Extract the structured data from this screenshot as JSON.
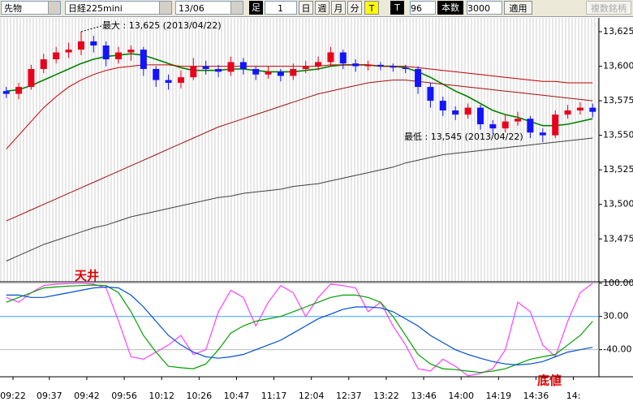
{
  "toolbar": {
    "market": "先物",
    "symbol": "日経225mini",
    "contract": "13/06",
    "bar_label": "足",
    "bar_value": 1,
    "periods": [
      "日",
      "週",
      "月",
      "分"
    ],
    "t_button": "T",
    "t_toggle": "T",
    "count": 96,
    "count_label": "本数",
    "bars": 3000,
    "apply": "適用",
    "multi": "複数銘柄"
  },
  "chart_data": [
    {
      "type": "candlestick",
      "categories": [
        "09:22",
        null,
        null,
        "09:37",
        null,
        null,
        "09:42",
        null,
        null,
        "09:56",
        null,
        null,
        "10:12",
        null,
        null,
        "10:26",
        null,
        null,
        "10:47",
        null,
        null,
        "11:17",
        null,
        null,
        "12:04",
        null,
        null,
        "12:37",
        null,
        null,
        "13:22",
        null,
        null,
        "13:46",
        null,
        null,
        "14:00",
        null,
        null,
        "14:19",
        null,
        null,
        "14:36",
        null,
        null,
        "14:",
        null,
        null
      ],
      "open": [
        13582,
        13580,
        13585,
        13598,
        13605,
        13610,
        13612,
        13618,
        13615,
        13605,
        13610,
        13612,
        13598,
        13590,
        13588,
        13592,
        13600,
        13598,
        13596,
        13603,
        13598,
        13594,
        13596,
        13593,
        13598,
        13600,
        13603,
        13610,
        13602,
        13600,
        13601,
        13600,
        13599,
        13598,
        13585,
        13575,
        13568,
        13565,
        13570,
        13558,
        13555,
        13560,
        13562,
        13552,
        13550,
        13565,
        13568,
        13570
      ],
      "high": [
        13585,
        13588,
        13601,
        13609,
        13614,
        13617,
        13625,
        13622,
        13618,
        13614,
        13615,
        13614,
        13600,
        13594,
        13597,
        13606,
        13604,
        13601,
        13607,
        13606,
        13600,
        13600,
        13598,
        13602,
        13604,
        13607,
        13614,
        13612,
        13605,
        13604,
        13603,
        13602,
        13601,
        13600,
        13588,
        13578,
        13571,
        13573,
        13572,
        13561,
        13565,
        13567,
        13564,
        13555,
        13568,
        13572,
        13574,
        13573
      ],
      "low": [
        13577,
        13576,
        13583,
        13595,
        13602,
        13606,
        13608,
        13610,
        13600,
        13602,
        13604,
        13593,
        13585,
        13583,
        13584,
        13590,
        13594,
        13592,
        13593,
        13594,
        13590,
        13591,
        13589,
        13590,
        13595,
        13597,
        13600,
        13598,
        13596,
        13597,
        13597,
        13596,
        13595,
        13580,
        13570,
        13564,
        13561,
        13562,
        13554,
        13551,
        13552,
        13557,
        13548,
        13545,
        13548,
        13562,
        13565,
        13563
      ],
      "close": [
        13580,
        13585,
        13598,
        13605,
        13610,
        13612,
        13618,
        13615,
        13605,
        13610,
        13612,
        13598,
        13590,
        13588,
        13592,
        13600,
        13598,
        13596,
        13603,
        13598,
        13594,
        13596,
        13593,
        13598,
        13600,
        13603,
        13610,
        13602,
        13600,
        13601,
        13600,
        13599,
        13598,
        13585,
        13575,
        13568,
        13565,
        13570,
        13558,
        13555,
        13560,
        13562,
        13552,
        13550,
        13565,
        13568,
        13570,
        13567
      ],
      "up_color": "#e8001c",
      "down_color": "#1414ff",
      "lines": [
        {
          "color": "#008000",
          "values": [
            13582,
            13583,
            13586,
            13590,
            13594,
            13598,
            13602,
            13605,
            13607,
            13608,
            13609,
            13608,
            13605,
            13602,
            13599,
            13597,
            13597,
            13597,
            13598,
            13598,
            13597,
            13596,
            13596,
            13596,
            13597,
            13598,
            13600,
            13601,
            13601,
            13601,
            13600,
            13600,
            13599,
            13596,
            13592,
            13587,
            13582,
            13578,
            13573,
            13568,
            13565,
            13563,
            13560,
            13557,
            13557,
            13558,
            13560,
            13562
          ]
        },
        {
          "color": "#c00000",
          "values": [
            13540,
            13550,
            13560,
            13570,
            13578,
            13585,
            13590,
            13594,
            13597,
            13599,
            13600,
            13601,
            13601,
            13601,
            13600,
            13600,
            13600,
            13600,
            13600,
            13600,
            13600,
            13600,
            13600,
            13600,
            13600,
            13600,
            13601,
            13601,
            13601,
            13601,
            13600,
            13600,
            13600,
            13599,
            13598,
            13597,
            13596,
            13595,
            13594,
            13593,
            13592,
            13591,
            13590,
            13589,
            13589,
            13588,
            13588,
            13588
          ]
        },
        {
          "color": "#a01010",
          "values": [
            13488,
            13492,
            13496,
            13500,
            13504,
            13508,
            13512,
            13516,
            13520,
            13524,
            13528,
            13532,
            13536,
            13540,
            13544,
            13548,
            13552,
            13556,
            13559,
            13562,
            13565,
            13568,
            13571,
            13574,
            13577,
            13580,
            13582,
            13584,
            13586,
            13588,
            13589,
            13590,
            13590,
            13589,
            13588,
            13587,
            13586,
            13585,
            13584,
            13583,
            13582,
            13581,
            13580,
            13579,
            13578,
            13577,
            13576,
            13575
          ]
        },
        {
          "color": "#404040",
          "values": [
            13459,
            13463,
            13467,
            13471,
            13474,
            13477,
            13480,
            13483,
            13485,
            13488,
            13491,
            13493,
            13495,
            13497,
            13499,
            13501,
            13503,
            13505,
            13506,
            13508,
            13509,
            13510,
            13511,
            13513,
            13514,
            13515,
            13517,
            13519,
            13521,
            13523,
            13525,
            13527,
            13530,
            13532,
            13534,
            13536,
            13537,
            13538,
            13539,
            13540,
            13541,
            13542,
            13543,
            13544,
            13545,
            13546,
            13547,
            13548
          ]
        }
      ],
      "ylim": [
        13444,
        13635
      ],
      "yticks": [
        {
          "value": 13625,
          "label": "13,625"
        },
        {
          "value": 13600,
          "label": "13,600"
        },
        {
          "value": 13575,
          "label": "13,575"
        },
        {
          "value": 13550,
          "label": "13,550"
        },
        {
          "value": 13525,
          "label": "13,525"
        },
        {
          "value": 13500,
          "label": "13,500"
        },
        {
          "value": 13475,
          "label": "13,475"
        }
      ],
      "annotations": [
        "最大 : 13,625 (2013/04/22)",
        "最低 : 13,545 (2013/04/22)"
      ]
    },
    {
      "type": "line",
      "series": [
        {
          "color": "#ff40ff",
          "values": [
            70,
            60,
            80,
            95,
            98,
            99,
            100,
            98,
            90,
            20,
            -55,
            -60,
            -45,
            -30,
            -10,
            -50,
            -40,
            40,
            85,
            70,
            10,
            60,
            95,
            80,
            30,
            70,
            98,
            95,
            90,
            40,
            60,
            10,
            -30,
            -80,
            -85,
            -60,
            -75,
            -95,
            -90,
            -80,
            -40,
            60,
            40,
            -30,
            -55,
            20,
            80,
            100
          ]
        },
        {
          "color": "#00a000",
          "values": [
            60,
            70,
            80,
            90,
            92,
            94,
            95,
            96,
            95,
            80,
            40,
            -10,
            -45,
            -75,
            -78,
            -80,
            -70,
            -40,
            -5,
            10,
            20,
            25,
            30,
            40,
            50,
            60,
            70,
            75,
            75,
            70,
            60,
            30,
            -10,
            -50,
            -70,
            -80,
            -82,
            -85,
            -88,
            -85,
            -80,
            -70,
            -60,
            -55,
            -50,
            -30,
            -10,
            20
          ]
        },
        {
          "color": "#0050d0",
          "values": [
            75,
            75,
            70,
            70,
            75,
            80,
            85,
            90,
            92,
            90,
            75,
            50,
            20,
            -10,
            -30,
            -45,
            -55,
            -58,
            -55,
            -50,
            -40,
            -30,
            -20,
            -5,
            10,
            25,
            35,
            45,
            50,
            50,
            48,
            40,
            25,
            10,
            -10,
            -25,
            -40,
            -50,
            -58,
            -65,
            -70,
            -72,
            -70,
            -65,
            -55,
            -45,
            -40,
            -35
          ]
        }
      ],
      "ylim": [
        -97,
        103
      ],
      "yticks": [
        {
          "value": 100,
          "label": "100.00"
        },
        {
          "value": 30,
          "label": "30.00"
        },
        {
          "value": -40,
          "label": "-40.00"
        }
      ],
      "annotations": [
        "天井",
        "底値"
      ]
    }
  ]
}
